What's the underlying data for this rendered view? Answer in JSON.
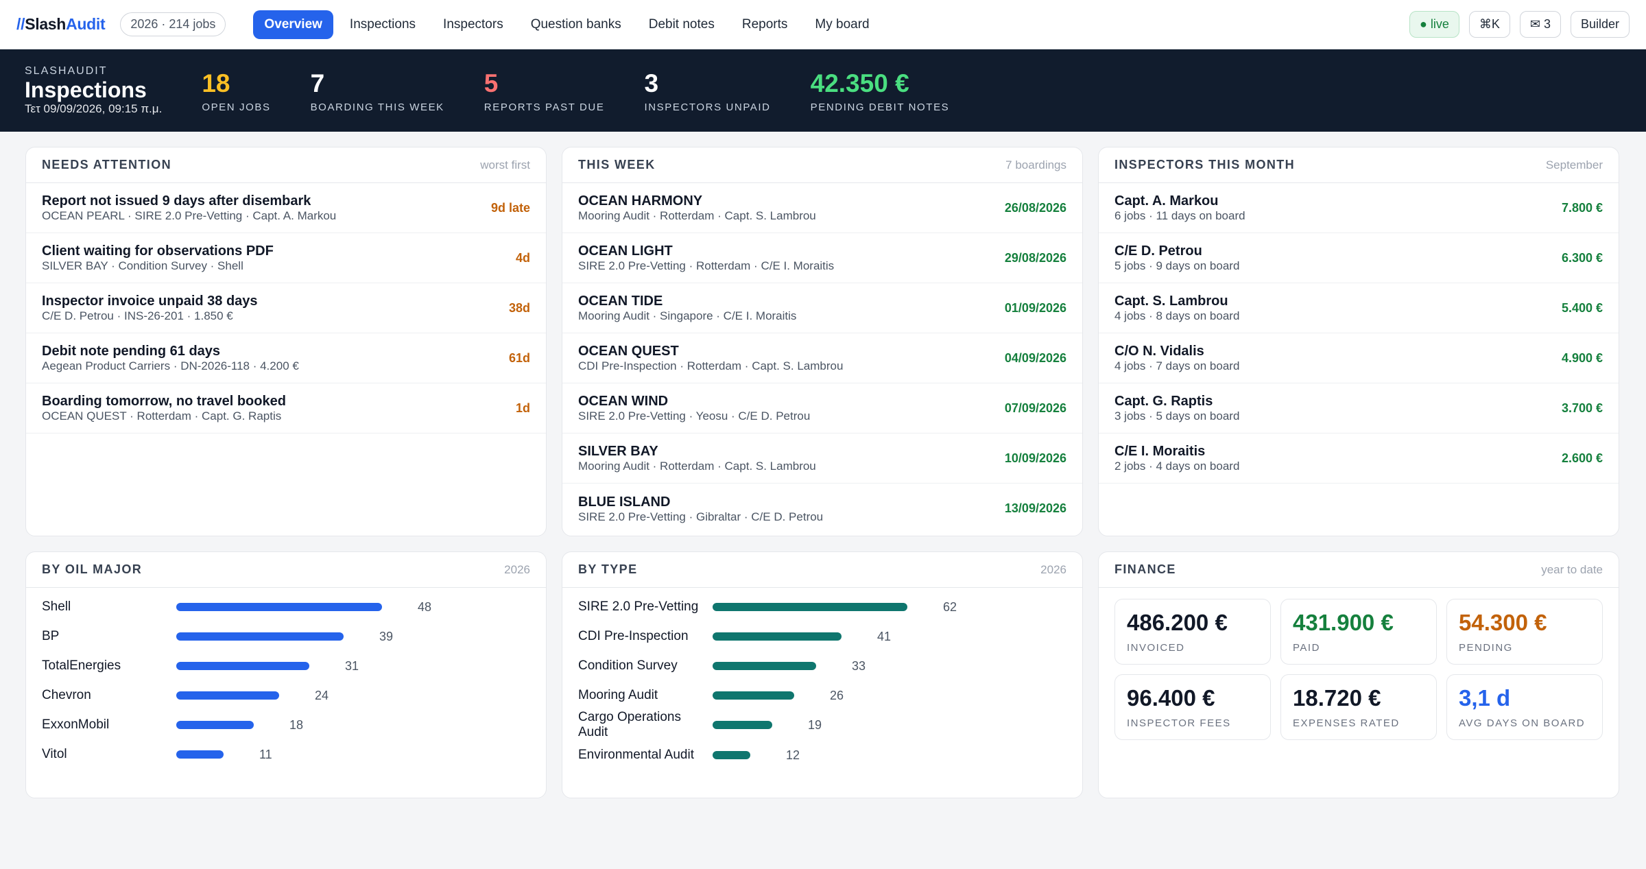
{
  "nav": {
    "logo_slash": "//",
    "logo_name": "Slash",
    "logo_accent": "Audit",
    "year_pill": "2026 · 214 jobs",
    "items": [
      "Overview",
      "Inspections",
      "Inspectors",
      "Question banks",
      "Debit notes",
      "Reports",
      "My board"
    ],
    "active": "Overview",
    "live": "● live",
    "shortcut": "⌘K",
    "messages": "✉ 3",
    "builder": "Builder"
  },
  "header": {
    "eyebrow": "SLASHAUDIT",
    "title": "Inspections",
    "date": "Τετ 09/09/2026, 09:15 π.μ.",
    "kpis": [
      {
        "value": "18",
        "label": "OPEN JOBS",
        "color": "#fbbf24"
      },
      {
        "value": "7",
        "label": "BOARDING THIS WEEK",
        "color": "#ffffff"
      },
      {
        "value": "5",
        "label": "REPORTS PAST DUE",
        "color": "#f87171"
      },
      {
        "value": "3",
        "label": "INSPECTORS UNPAID",
        "color": "#ffffff"
      },
      {
        "value": "42.350 €",
        "label": "PENDING DEBIT NOTES",
        "color": "#4ade80"
      }
    ]
  },
  "attention": {
    "title": "NEEDS ATTENTION",
    "meta": "worst first",
    "rows": [
      {
        "main": "Report not issued 9 days after disembark",
        "sub": "OCEAN PEARL · SIRE 2.0 Pre-Vetting · Capt. A. Markou",
        "value": "9d late"
      },
      {
        "main": "Client waiting for observations PDF",
        "sub": "SILVER BAY · Condition Survey · Shell",
        "value": "4d"
      },
      {
        "main": "Inspector invoice unpaid 38 days",
        "sub": "C/E D. Petrou · INS-26-201 · 1.850 €",
        "value": "38d"
      },
      {
        "main": "Debit note pending 61 days",
        "sub": "Aegean Product Carriers · DN-2026-118 · 4.200 €",
        "value": "61d"
      },
      {
        "main": "Boarding tomorrow, no travel booked",
        "sub": "OCEAN QUEST · Rotterdam · Capt. G. Raptis",
        "value": "1d"
      }
    ]
  },
  "week": {
    "title": "THIS WEEK",
    "meta": "7 boardings",
    "rows": [
      {
        "main": "OCEAN HARMONY",
        "sub": "Mooring Audit · Rotterdam · Capt. S. Lambrou",
        "value": "26/08/2026"
      },
      {
        "main": "OCEAN LIGHT",
        "sub": "SIRE 2.0 Pre-Vetting · Rotterdam · C/E I. Moraitis",
        "value": "29/08/2026"
      },
      {
        "main": "OCEAN TIDE",
        "sub": "Mooring Audit · Singapore · C/E I. Moraitis",
        "value": "01/09/2026"
      },
      {
        "main": "OCEAN QUEST",
        "sub": "CDI Pre-Inspection · Rotterdam · Capt. S. Lambrou",
        "value": "04/09/2026"
      },
      {
        "main": "OCEAN WIND",
        "sub": "SIRE 2.0 Pre-Vetting · Yeosu · C/E D. Petrou",
        "value": "07/09/2026"
      },
      {
        "main": "SILVER BAY",
        "sub": "Mooring Audit · Rotterdam · Capt. S. Lambrou",
        "value": "10/09/2026"
      },
      {
        "main": "BLUE ISLAND",
        "sub": "SIRE 2.0 Pre-Vetting · Gibraltar · C/E D. Petrou",
        "value": "13/09/2026"
      }
    ]
  },
  "inspectors": {
    "title": "INSPECTORS THIS MONTH",
    "meta": "September",
    "rows": [
      {
        "main": "Capt. A. Markou",
        "sub": "6 jobs · 11 days on board",
        "value": "7.800 €"
      },
      {
        "main": "C/E D. Petrou",
        "sub": "5 jobs · 9 days on board",
        "value": "6.300 €"
      },
      {
        "main": "Capt. S. Lambrou",
        "sub": "4 jobs · 8 days on board",
        "value": "5.400 €"
      },
      {
        "main": "C/O N. Vidalis",
        "sub": "4 jobs · 7 days on board",
        "value": "4.900 €"
      },
      {
        "main": "Capt. G. Raptis",
        "sub": "3 jobs · 5 days on board",
        "value": "3.700 €"
      },
      {
        "main": "C/E I. Moraitis",
        "sub": "2 jobs · 4 days on board",
        "value": "2.600 €"
      }
    ]
  },
  "by_major": {
    "title": "BY OIL MAJOR",
    "meta": "2026",
    "color": "#2563eb",
    "items": [
      {
        "label": "Shell",
        "value": 48
      },
      {
        "label": "BP",
        "value": 39
      },
      {
        "label": "TotalEnergies",
        "value": 31
      },
      {
        "label": "Chevron",
        "value": 24
      },
      {
        "label": "ExxonMobil",
        "value": 18
      },
      {
        "label": "Vitol",
        "value": 11
      }
    ]
  },
  "by_type": {
    "title": "BY TYPE",
    "meta": "2026",
    "color": "#0f766e",
    "items": [
      {
        "label": "SIRE 2.0 Pre-Vetting",
        "value": 62
      },
      {
        "label": "CDI Pre-Inspection",
        "value": 41
      },
      {
        "label": "Condition Survey",
        "value": 33
      },
      {
        "label": "Mooring Audit",
        "value": 26
      },
      {
        "label": "Cargo Operations Audit",
        "value": 19
      },
      {
        "label": "Environmental Audit",
        "value": 12
      }
    ]
  },
  "finance": {
    "title": "FINANCE",
    "meta": "year to date",
    "tiles": [
      {
        "value": "486.200 €",
        "label": "INVOICED",
        "color": "#111827"
      },
      {
        "value": "431.900 €",
        "label": "PAID",
        "color": "#15803d"
      },
      {
        "value": "54.300 €",
        "label": "PENDING",
        "color": "#c2620a"
      },
      {
        "value": "96.400 €",
        "label": "INSPECTOR FEES",
        "color": "#111827"
      },
      {
        "value": "18.720 €",
        "label": "EXPENSES RATED",
        "color": "#111827"
      },
      {
        "value": "3,1 d",
        "label": "AVG DAYS ON BOARD",
        "color": "#2563eb"
      }
    ]
  }
}
